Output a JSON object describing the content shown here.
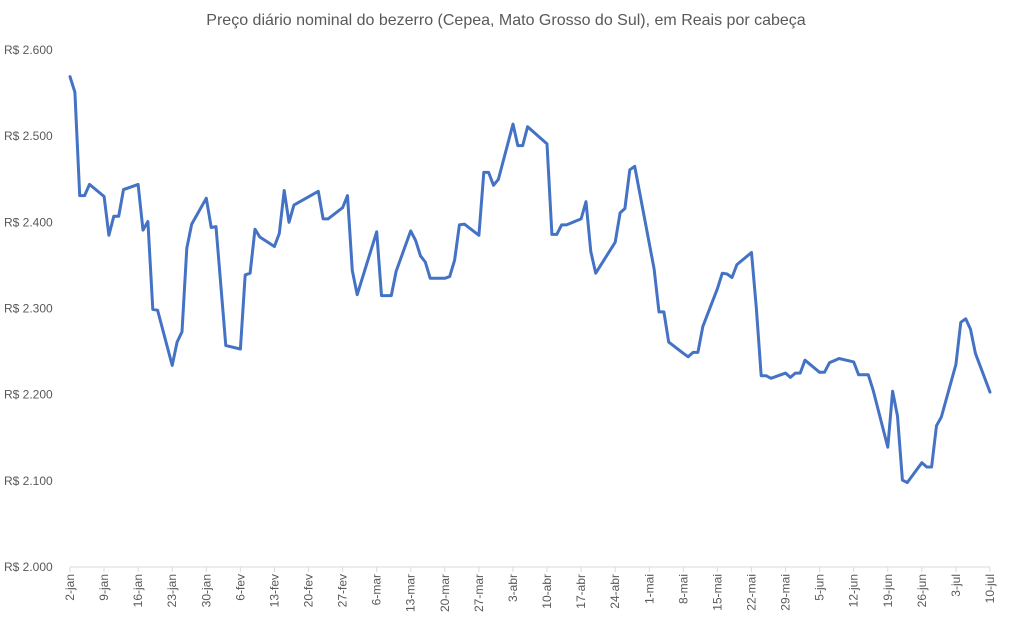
{
  "chart_data": {
    "type": "line",
    "title": "Preço diário nominal do bezerro (Cepea, Mato Grosso do Sul), em Reais por cabeça",
    "xlabel": "",
    "ylabel": "",
    "ylim": [
      2000,
      2600
    ],
    "y_ticks": [
      {
        "value": 2000,
        "label": "R$ 2.000"
      },
      {
        "value": 2100,
        "label": "R$ 2.100"
      },
      {
        "value": 2200,
        "label": "R$ 2.200"
      },
      {
        "value": 2300,
        "label": "R$ 2.300"
      },
      {
        "value": 2400,
        "label": "R$ 2.400"
      },
      {
        "value": 2500,
        "label": "R$ 2.500"
      },
      {
        "value": 2600,
        "label": "R$ 2.600"
      }
    ],
    "x_range": [
      "2-jan",
      "10-jul"
    ],
    "x_ticks": [
      {
        "date": "2-jan",
        "label": "2-jan"
      },
      {
        "date": "9-jan",
        "label": "9-jan"
      },
      {
        "date": "16-jan",
        "label": "16-jan"
      },
      {
        "date": "23-jan",
        "label": "23-jan"
      },
      {
        "date": "30-jan",
        "label": "30-jan"
      },
      {
        "date": "6-fev",
        "label": "6-fev"
      },
      {
        "date": "13-fev",
        "label": "13-fev"
      },
      {
        "date": "20-fev",
        "label": "20-fev"
      },
      {
        "date": "27-fev",
        "label": "27-fev"
      },
      {
        "date": "6-mar",
        "label": "6-mar"
      },
      {
        "date": "13-mar",
        "label": "13-mar"
      },
      {
        "date": "20-mar",
        "label": "20-mar"
      },
      {
        "date": "27-mar",
        "label": "27-mar"
      },
      {
        "date": "3-abr",
        "label": "3-abr"
      },
      {
        "date": "10-abr",
        "label": "10-abr"
      },
      {
        "date": "17-abr",
        "label": "17-abr"
      },
      {
        "date": "24-abr",
        "label": "24-abr"
      },
      {
        "date": "1-mai",
        "label": "1-mai"
      },
      {
        "date": "8-mai",
        "label": "8-mai"
      },
      {
        "date": "15-mai",
        "label": "15-mai"
      },
      {
        "date": "22-mai",
        "label": "22-mai"
      },
      {
        "date": "29-mai",
        "label": "29-mai"
      },
      {
        "date": "5-jun",
        "label": "5-jun"
      },
      {
        "date": "12-jun",
        "label": "12-jun"
      },
      {
        "date": "19-jun",
        "label": "19-jun"
      },
      {
        "date": "26-jun",
        "label": "26-jun"
      },
      {
        "date": "3-jul",
        "label": "3-jul"
      },
      {
        "date": "10-jul",
        "label": "10-jul"
      }
    ],
    "grid": false,
    "legend": "none",
    "line_color": "#4472C4",
    "series": [
      {
        "points": [
          {
            "x": "2-jan",
            "y": 2569
          },
          {
            "x": "3-jan",
            "y": 2551
          },
          {
            "x": "4-jan",
            "y": 2431
          },
          {
            "x": "5-jan",
            "y": 2431
          },
          {
            "x": "6-jan",
            "y": 2444
          },
          {
            "x": "9-jan",
            "y": 2430
          },
          {
            "x": "10-jan",
            "y": 2385
          },
          {
            "x": "11-jan",
            "y": 2407
          },
          {
            "x": "12-jan",
            "y": 2407
          },
          {
            "x": "13-jan",
            "y": 2438
          },
          {
            "x": "16-jan",
            "y": 2444
          },
          {
            "x": "17-jan",
            "y": 2391
          },
          {
            "x": "18-jan",
            "y": 2401
          },
          {
            "x": "19-jan",
            "y": 2299
          },
          {
            "x": "20-jan",
            "y": 2298
          },
          {
            "x": "23-jan",
            "y": 2234
          },
          {
            "x": "24-jan",
            "y": 2261
          },
          {
            "x": "25-jan",
            "y": 2273
          },
          {
            "x": "26-jan",
            "y": 2370
          },
          {
            "x": "27-jan",
            "y": 2398
          },
          {
            "x": "30-jan",
            "y": 2428
          },
          {
            "x": "31-jan",
            "y": 2394
          },
          {
            "x": "1-fev",
            "y": 2395
          },
          {
            "x": "2-fev",
            "y": 2326
          },
          {
            "x": "3-fev",
            "y": 2257
          },
          {
            "x": "6-fev",
            "y": 2253
          },
          {
            "x": "7-fev",
            "y": 2339
          },
          {
            "x": "8-fev",
            "y": 2341
          },
          {
            "x": "9-fev",
            "y": 2392
          },
          {
            "x": "10-fev",
            "y": 2383
          },
          {
            "x": "13-fev",
            "y": 2372
          },
          {
            "x": "14-fev",
            "y": 2387
          },
          {
            "x": "15-fev",
            "y": 2437
          },
          {
            "x": "16-fev",
            "y": 2400
          },
          {
            "x": "17-fev",
            "y": 2420
          },
          {
            "x": "22-fev",
            "y": 2436
          },
          {
            "x": "23-fev",
            "y": 2404
          },
          {
            "x": "24-fev",
            "y": 2404
          },
          {
            "x": "27-fev",
            "y": 2417
          },
          {
            "x": "28-fev",
            "y": 2431
          },
          {
            "x": "1-mar",
            "y": 2344
          },
          {
            "x": "2-mar",
            "y": 2316
          },
          {
            "x": "6-mar",
            "y": 2389
          },
          {
            "x": "7-mar",
            "y": 2315
          },
          {
            "x": "8-mar",
            "y": 2315
          },
          {
            "x": "9-mar",
            "y": 2315
          },
          {
            "x": "10-mar",
            "y": 2343
          },
          {
            "x": "13-mar",
            "y": 2390
          },
          {
            "x": "14-mar",
            "y": 2379
          },
          {
            "x": "15-mar",
            "y": 2361
          },
          {
            "x": "16-mar",
            "y": 2354
          },
          {
            "x": "17-mar",
            "y": 2335
          },
          {
            "x": "20-mar",
            "y": 2335
          },
          {
            "x": "21-mar",
            "y": 2337
          },
          {
            "x": "22-mar",
            "y": 2356
          },
          {
            "x": "23-mar",
            "y": 2397
          },
          {
            "x": "24-mar",
            "y": 2398
          },
          {
            "x": "27-mar",
            "y": 2385
          },
          {
            "x": "28-mar",
            "y": 2458
          },
          {
            "x": "29-mar",
            "y": 2458
          },
          {
            "x": "30-mar",
            "y": 2443
          },
          {
            "x": "31-mar",
            "y": 2450
          },
          {
            "x": "3-abr",
            "y": 2514
          },
          {
            "x": "4-abr",
            "y": 2489
          },
          {
            "x": "5-abr",
            "y": 2489
          },
          {
            "x": "6-abr",
            "y": 2511
          },
          {
            "x": "10-abr",
            "y": 2491
          },
          {
            "x": "11-abr",
            "y": 2386
          },
          {
            "x": "12-abr",
            "y": 2386
          },
          {
            "x": "13-abr",
            "y": 2397
          },
          {
            "x": "14-abr",
            "y": 2397
          },
          {
            "x": "17-abr",
            "y": 2404
          },
          {
            "x": "18-abr",
            "y": 2424
          },
          {
            "x": "19-abr",
            "y": 2366
          },
          {
            "x": "20-abr",
            "y": 2341
          },
          {
            "x": "24-abr",
            "y": 2377
          },
          {
            "x": "25-abr",
            "y": 2411
          },
          {
            "x": "26-abr",
            "y": 2416
          },
          {
            "x": "27-abr",
            "y": 2461
          },
          {
            "x": "28-abr",
            "y": 2465
          },
          {
            "x": "2-mai",
            "y": 2346
          },
          {
            "x": "3-mai",
            "y": 2296
          },
          {
            "x": "4-mai",
            "y": 2296
          },
          {
            "x": "5-mai",
            "y": 2261
          },
          {
            "x": "8-mai",
            "y": 2248
          },
          {
            "x": "9-mai",
            "y": 2244
          },
          {
            "x": "10-mai",
            "y": 2249
          },
          {
            "x": "11-mai",
            "y": 2249
          },
          {
            "x": "12-mai",
            "y": 2279
          },
          {
            "x": "15-mai",
            "y": 2323
          },
          {
            "x": "16-mai",
            "y": 2341
          },
          {
            "x": "17-mai",
            "y": 2340
          },
          {
            "x": "18-mai",
            "y": 2336
          },
          {
            "x": "19-mai",
            "y": 2351
          },
          {
            "x": "22-mai",
            "y": 2365
          },
          {
            "x": "23-mai",
            "y": 2301
          },
          {
            "x": "24-mai",
            "y": 2222
          },
          {
            "x": "25-mai",
            "y": 2222
          },
          {
            "x": "26-mai",
            "y": 2219
          },
          {
            "x": "29-mai",
            "y": 2225
          },
          {
            "x": "30-mai",
            "y": 2220
          },
          {
            "x": "31-mai",
            "y": 2225
          },
          {
            "x": "1-jun",
            "y": 2225
          },
          {
            "x": "2-jun",
            "y": 2240
          },
          {
            "x": "5-jun",
            "y": 2226
          },
          {
            "x": "6-jun",
            "y": 2226
          },
          {
            "x": "7-jun",
            "y": 2237
          },
          {
            "x": "9-jun",
            "y": 2242
          },
          {
            "x": "12-jun",
            "y": 2238
          },
          {
            "x": "13-jun",
            "y": 2223
          },
          {
            "x": "14-jun",
            "y": 2223
          },
          {
            "x": "15-jun",
            "y": 2223
          },
          {
            "x": "16-jun",
            "y": 2205
          },
          {
            "x": "19-jun",
            "y": 2139
          },
          {
            "x": "20-jun",
            "y": 2204
          },
          {
            "x": "21-jun",
            "y": 2175
          },
          {
            "x": "22-jun",
            "y": 2101
          },
          {
            "x": "23-jun",
            "y": 2098
          },
          {
            "x": "26-jun",
            "y": 2121
          },
          {
            "x": "27-jun",
            "y": 2116
          },
          {
            "x": "28-jun",
            "y": 2116
          },
          {
            "x": "29-jun",
            "y": 2164
          },
          {
            "x": "30-jun",
            "y": 2174
          },
          {
            "x": "3-jul",
            "y": 2235
          },
          {
            "x": "4-jul",
            "y": 2284
          },
          {
            "x": "5-jul",
            "y": 2288
          },
          {
            "x": "6-jul",
            "y": 2276
          },
          {
            "x": "7-jul",
            "y": 2248
          },
          {
            "x": "10-jul",
            "y": 2203
          }
        ]
      }
    ]
  }
}
